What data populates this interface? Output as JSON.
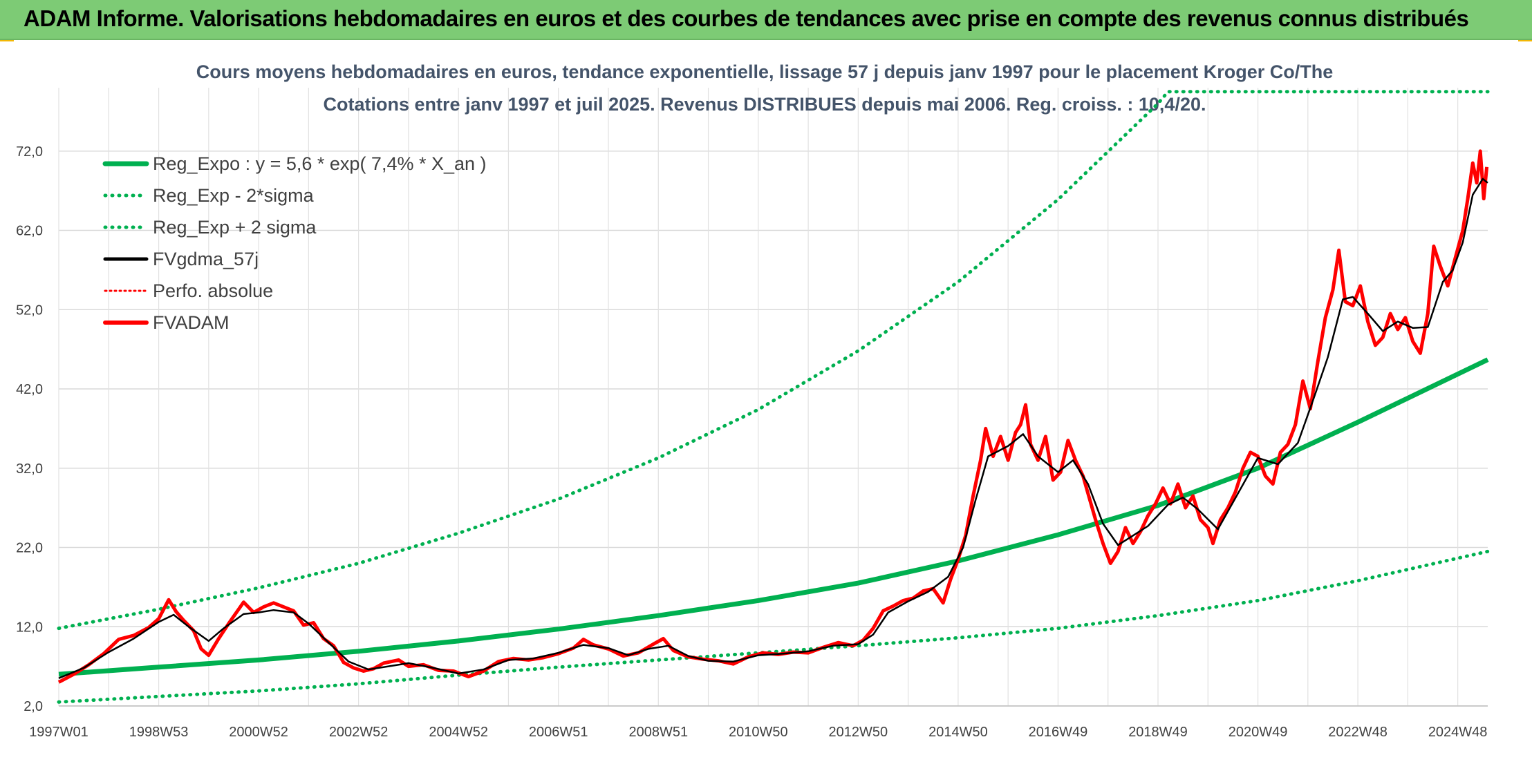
{
  "header": {
    "title": "ADAM Informe. Valorisations hebdomadaires en euros et des courbes de tendances avec prise en compte des revenus connus distribués"
  },
  "colors": {
    "header_bg": "#7dcb75",
    "reg_expo": "#00b050",
    "fv_gdma": "#000000",
    "fv_adam": "#ff0000",
    "perfo": "#ff0000"
  },
  "chart_data": {
    "type": "line",
    "title_lines": [
      "Cours moyens hebdomadaires en euros, tendance exponentielle, lissage 57 j depuis janv 1997 pour le placement Kroger Co/The",
      "Cotations entre janv 1997 et juil 2025. Revenus DISTRIBUES depuis mai 2006. Reg. croiss. : 10,4/20."
    ],
    "xlim": [
      1997.0,
      2025.6
    ],
    "ylim": [
      2,
      80
    ],
    "yticks": [
      {
        "v": 2,
        "label": "2,0"
      },
      {
        "v": 12,
        "label": "12,0"
      },
      {
        "v": 22,
        "label": "22,0"
      },
      {
        "v": 32,
        "label": "32,0"
      },
      {
        "v": 42,
        "label": "42,0"
      },
      {
        "v": 52,
        "label": "52,0"
      },
      {
        "v": 62,
        "label": "62,0"
      },
      {
        "v": 72,
        "label": "72,0"
      }
    ],
    "xticks": [
      {
        "t": 1997.0,
        "label": "1997W01"
      },
      {
        "t": 1999.0,
        "label": "1998W53"
      },
      {
        "t": 2001.0,
        "label": "2000W52"
      },
      {
        "t": 2003.0,
        "label": "2002W52"
      },
      {
        "t": 2005.0,
        "label": "2004W52"
      },
      {
        "t": 2007.0,
        "label": "2006W51"
      },
      {
        "t": 2009.0,
        "label": "2008W51"
      },
      {
        "t": 2011.0,
        "label": "2010W50"
      },
      {
        "t": 2013.0,
        "label": "2012W50"
      },
      {
        "t": 2015.0,
        "label": "2014W50"
      },
      {
        "t": 2017.0,
        "label": "2016W49"
      },
      {
        "t": 2019.0,
        "label": "2018W49"
      },
      {
        "t": 2021.0,
        "label": "2020W49"
      },
      {
        "t": 2023.0,
        "label": "2022W48"
      },
      {
        "t": 2025.0,
        "label": "2024W48"
      }
    ],
    "legend_position": "top-left",
    "grid": true,
    "series": [
      {
        "name": "Reg_Expo : y = 5,6 * exp( 7,4% *  X_an )",
        "style": "solid-green"
      },
      {
        "name": "Reg_Exp - 2*sigma",
        "style": "dotted-green"
      },
      {
        "name": "Reg_Exp + 2 sigma",
        "style": "dotted-green"
      },
      {
        "name": "FVgdma_57j",
        "style": "solid-black"
      },
      {
        "name": "Perfo. absolue",
        "style": "dotted-red"
      },
      {
        "name": "FVADAM",
        "style": "solid-red"
      }
    ],
    "reg_expo": [
      [
        1997.0,
        6.0
      ],
      [
        1999.0,
        6.9
      ],
      [
        2001.0,
        7.8
      ],
      [
        2003.0,
        8.9
      ],
      [
        2005.0,
        10.2
      ],
      [
        2007.0,
        11.7
      ],
      [
        2009.0,
        13.4
      ],
      [
        2011.0,
        15.3
      ],
      [
        2013.0,
        17.5
      ],
      [
        2015.0,
        20.3
      ],
      [
        2017.0,
        23.6
      ],
      [
        2019.0,
        27.3
      ],
      [
        2021.0,
        32.0
      ],
      [
        2023.0,
        37.8
      ],
      [
        2025.6,
        45.7
      ]
    ],
    "reg_minus_2sigma": [
      [
        1997.0,
        2.5
      ],
      [
        1999.0,
        3.2
      ],
      [
        2001.0,
        3.9
      ],
      [
        2003.0,
        4.8
      ],
      [
        2005.0,
        5.9
      ],
      [
        2007.0,
        6.9
      ],
      [
        2009.0,
        7.8
      ],
      [
        2011.0,
        8.7
      ],
      [
        2013.0,
        9.6
      ],
      [
        2015.0,
        10.6
      ],
      [
        2017.0,
        11.8
      ],
      [
        2019.0,
        13.4
      ],
      [
        2021.0,
        15.3
      ],
      [
        2023.0,
        17.8
      ],
      [
        2025.6,
        21.5
      ]
    ],
    "reg_plus_2sigma": [
      [
        1997.0,
        11.8
      ],
      [
        1999.0,
        14.2
      ],
      [
        2001.0,
        16.9
      ],
      [
        2003.0,
        20.0
      ],
      [
        2005.0,
        23.8
      ],
      [
        2007.0,
        28.1
      ],
      [
        2009.0,
        33.3
      ],
      [
        2011.0,
        39.4
      ],
      [
        2013.0,
        46.8
      ],
      [
        2015.0,
        55.5
      ],
      [
        2017.0,
        65.9
      ],
      [
        2019.0,
        78.0
      ],
      [
        2019.2,
        79.5
      ],
      [
        2025.6,
        79.5
      ]
    ],
    "fvgdma_57j": [
      [
        1997.0,
        5.5
      ],
      [
        1997.5,
        6.8
      ],
      [
        1998.0,
        8.8
      ],
      [
        1998.5,
        10.5
      ],
      [
        1999.0,
        12.6
      ],
      [
        1999.3,
        13.5
      ],
      [
        1999.6,
        12.0
      ],
      [
        2000.0,
        10.2
      ],
      [
        2000.3,
        11.8
      ],
      [
        2000.7,
        13.6
      ],
      [
        2001.0,
        13.8
      ],
      [
        2001.3,
        14.1
      ],
      [
        2001.7,
        13.8
      ],
      [
        2002.0,
        12.4
      ],
      [
        2002.4,
        10.0
      ],
      [
        2002.8,
        7.6
      ],
      [
        2003.2,
        6.6
      ],
      [
        2003.6,
        7.0
      ],
      [
        2004.0,
        7.4
      ],
      [
        2004.5,
        6.8
      ],
      [
        2005.0,
        6.1
      ],
      [
        2005.5,
        6.6
      ],
      [
        2006.0,
        7.8
      ],
      [
        2006.5,
        8.0
      ],
      [
        2007.0,
        8.7
      ],
      [
        2007.5,
        9.7
      ],
      [
        2008.0,
        9.3
      ],
      [
        2008.4,
        8.4
      ],
      [
        2008.8,
        9.2
      ],
      [
        2009.2,
        9.6
      ],
      [
        2009.6,
        8.3
      ],
      [
        2010.0,
        7.7
      ],
      [
        2010.5,
        7.6
      ],
      [
        2011.0,
        8.4
      ],
      [
        2011.5,
        8.6
      ],
      [
        2012.0,
        8.9
      ],
      [
        2012.5,
        9.6
      ],
      [
        2013.0,
        9.8
      ],
      [
        2013.3,
        11.0
      ],
      [
        2013.6,
        13.8
      ],
      [
        2014.0,
        15.2
      ],
      [
        2014.4,
        16.4
      ],
      [
        2014.8,
        18.3
      ],
      [
        2015.1,
        22.0
      ],
      [
        2015.35,
        28.0
      ],
      [
        2015.6,
        33.5
      ],
      [
        2016.0,
        34.8
      ],
      [
        2016.3,
        36.3
      ],
      [
        2016.6,
        33.5
      ],
      [
        2017.0,
        31.5
      ],
      [
        2017.3,
        33.0
      ],
      [
        2017.6,
        30.0
      ],
      [
        2017.9,
        25.0
      ],
      [
        2018.2,
        22.3
      ],
      [
        2018.5,
        23.5
      ],
      [
        2018.8,
        24.7
      ],
      [
        2019.2,
        27.4
      ],
      [
        2019.5,
        28.3
      ],
      [
        2019.8,
        26.8
      ],
      [
        2020.2,
        24.3
      ],
      [
        2020.6,
        28.8
      ],
      [
        2021.0,
        33.3
      ],
      [
        2021.4,
        32.5
      ],
      [
        2021.8,
        35.2
      ],
      [
        2022.1,
        40.5
      ],
      [
        2022.4,
        46.0
      ],
      [
        2022.7,
        53.3
      ],
      [
        2022.9,
        53.6
      ],
      [
        2023.2,
        51.5
      ],
      [
        2023.5,
        49.3
      ],
      [
        2023.8,
        50.5
      ],
      [
        2024.1,
        49.7
      ],
      [
        2024.4,
        49.8
      ],
      [
        2024.7,
        55.5
      ],
      [
        2024.9,
        57.0
      ],
      [
        2025.1,
        60.5
      ],
      [
        2025.3,
        66.5
      ],
      [
        2025.5,
        68.5
      ],
      [
        2025.6,
        68.0
      ]
    ],
    "fvadam": [
      [
        1997.0,
        5.0
      ],
      [
        1997.3,
        6.0
      ],
      [
        1997.6,
        7.2
      ],
      [
        1997.9,
        8.6
      ],
      [
        1998.2,
        10.4
      ],
      [
        1998.5,
        10.9
      ],
      [
        1998.8,
        11.9
      ],
      [
        1999.0,
        13.0
      ],
      [
        1999.2,
        15.4
      ],
      [
        1999.35,
        13.9
      ],
      [
        1999.5,
        12.8
      ],
      [
        1999.7,
        11.5
      ],
      [
        1999.85,
        9.2
      ],
      [
        2000.0,
        8.4
      ],
      [
        2000.2,
        10.5
      ],
      [
        2000.4,
        12.4
      ],
      [
        2000.6,
        14.2
      ],
      [
        2000.7,
        15.1
      ],
      [
        2000.9,
        13.8
      ],
      [
        2001.1,
        14.5
      ],
      [
        2001.3,
        15.0
      ],
      [
        2001.5,
        14.5
      ],
      [
        2001.7,
        14.0
      ],
      [
        2001.9,
        12.2
      ],
      [
        2002.1,
        12.5
      ],
      [
        2002.3,
        10.5
      ],
      [
        2002.5,
        9.6
      ],
      [
        2002.7,
        7.5
      ],
      [
        2002.9,
        6.8
      ],
      [
        2003.1,
        6.4
      ],
      [
        2003.3,
        6.7
      ],
      [
        2003.5,
        7.4
      ],
      [
        2003.8,
        7.8
      ],
      [
        2004.0,
        7.0
      ],
      [
        2004.3,
        7.2
      ],
      [
        2004.6,
        6.5
      ],
      [
        2004.9,
        6.4
      ],
      [
        2005.2,
        5.7
      ],
      [
        2005.5,
        6.4
      ],
      [
        2005.8,
        7.6
      ],
      [
        2006.1,
        8.0
      ],
      [
        2006.4,
        7.8
      ],
      [
        2006.7,
        8.1
      ],
      [
        2007.0,
        8.6
      ],
      [
        2007.3,
        9.3
      ],
      [
        2007.5,
        10.4
      ],
      [
        2007.7,
        9.7
      ],
      [
        2008.0,
        9.2
      ],
      [
        2008.3,
        8.3
      ],
      [
        2008.6,
        8.7
      ],
      [
        2008.9,
        9.8
      ],
      [
        2009.1,
        10.5
      ],
      [
        2009.3,
        9.0
      ],
      [
        2009.6,
        8.2
      ],
      [
        2009.9,
        7.9
      ],
      [
        2010.2,
        7.7
      ],
      [
        2010.5,
        7.3
      ],
      [
        2010.8,
        8.2
      ],
      [
        2011.1,
        8.7
      ],
      [
        2011.4,
        8.5
      ],
      [
        2011.7,
        8.8
      ],
      [
        2012.0,
        8.7
      ],
      [
        2012.3,
        9.4
      ],
      [
        2012.6,
        10.0
      ],
      [
        2012.9,
        9.6
      ],
      [
        2013.1,
        10.3
      ],
      [
        2013.3,
        11.8
      ],
      [
        2013.5,
        14.0
      ],
      [
        2013.7,
        14.6
      ],
      [
        2013.9,
        15.3
      ],
      [
        2014.1,
        15.6
      ],
      [
        2014.3,
        16.5
      ],
      [
        2014.5,
        16.8
      ],
      [
        2014.7,
        15.0
      ],
      [
        2014.85,
        18.0
      ],
      [
        2015.0,
        20.5
      ],
      [
        2015.15,
        23.5
      ],
      [
        2015.3,
        28.5
      ],
      [
        2015.45,
        33.0
      ],
      [
        2015.55,
        37.0
      ],
      [
        2015.7,
        33.5
      ],
      [
        2015.85,
        36.0
      ],
      [
        2016.0,
        33.0
      ],
      [
        2016.15,
        36.5
      ],
      [
        2016.25,
        37.5
      ],
      [
        2016.35,
        40.0
      ],
      [
        2016.45,
        35.0
      ],
      [
        2016.6,
        33.0
      ],
      [
        2016.75,
        36.0
      ],
      [
        2016.9,
        30.5
      ],
      [
        2017.05,
        31.5
      ],
      [
        2017.2,
        35.5
      ],
      [
        2017.35,
        33.0
      ],
      [
        2017.5,
        31.0
      ],
      [
        2017.6,
        28.8
      ],
      [
        2017.75,
        25.5
      ],
      [
        2017.9,
        22.5
      ],
      [
        2018.05,
        20.0
      ],
      [
        2018.2,
        21.5
      ],
      [
        2018.35,
        24.5
      ],
      [
        2018.5,
        22.5
      ],
      [
        2018.65,
        24.0
      ],
      [
        2018.8,
        26.0
      ],
      [
        2018.95,
        27.5
      ],
      [
        2019.1,
        29.5
      ],
      [
        2019.25,
        27.5
      ],
      [
        2019.4,
        30.0
      ],
      [
        2019.55,
        27.0
      ],
      [
        2019.7,
        28.5
      ],
      [
        2019.85,
        25.5
      ],
      [
        2020.0,
        24.5
      ],
      [
        2020.1,
        22.5
      ],
      [
        2020.25,
        25.5
      ],
      [
        2020.4,
        27.0
      ],
      [
        2020.55,
        29.0
      ],
      [
        2020.7,
        32.0
      ],
      [
        2020.85,
        34.0
      ],
      [
        2021.0,
        33.5
      ],
      [
        2021.15,
        31.0
      ],
      [
        2021.3,
        30.0
      ],
      [
        2021.45,
        34.0
      ],
      [
        2021.6,
        35.0
      ],
      [
        2021.75,
        37.5
      ],
      [
        2021.9,
        43.0
      ],
      [
        2022.05,
        39.5
      ],
      [
        2022.2,
        45.5
      ],
      [
        2022.35,
        51.0
      ],
      [
        2022.5,
        54.5
      ],
      [
        2022.62,
        59.5
      ],
      [
        2022.75,
        53.0
      ],
      [
        2022.9,
        52.5
      ],
      [
        2023.05,
        55.0
      ],
      [
        2023.2,
        50.5
      ],
      [
        2023.35,
        47.5
      ],
      [
        2023.5,
        48.5
      ],
      [
        2023.65,
        51.5
      ],
      [
        2023.8,
        49.5
      ],
      [
        2023.95,
        51.0
      ],
      [
        2024.1,
        48.0
      ],
      [
        2024.25,
        46.5
      ],
      [
        2024.4,
        51.5
      ],
      [
        2024.52,
        60.0
      ],
      [
        2024.65,
        57.5
      ],
      [
        2024.8,
        55.0
      ],
      [
        2024.95,
        58.5
      ],
      [
        2025.1,
        62.0
      ],
      [
        2025.2,
        66.0
      ],
      [
        2025.3,
        70.5
      ],
      [
        2025.38,
        68.0
      ],
      [
        2025.45,
        72.0
      ],
      [
        2025.52,
        66.0
      ],
      [
        2025.58,
        70.0
      ]
    ]
  }
}
